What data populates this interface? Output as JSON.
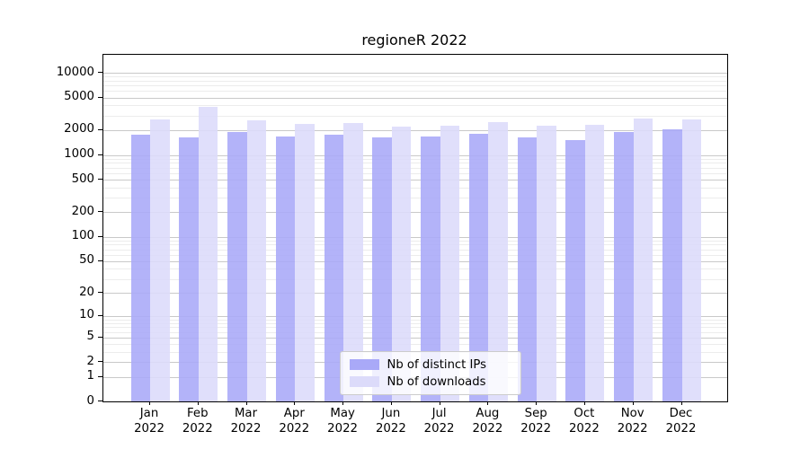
{
  "title": "regioneR 2022",
  "y_axis": {
    "ticks": [
      {
        "label": "10000",
        "value": 10000
      },
      {
        "label": "5000",
        "value": 5000
      },
      {
        "label": "2000",
        "value": 2000
      },
      {
        "label": "1000",
        "value": 1000
      },
      {
        "label": "500",
        "value": 500
      },
      {
        "label": "200",
        "value": 200
      },
      {
        "label": "100",
        "value": 100
      },
      {
        "label": "50",
        "value": 50
      },
      {
        "label": "20",
        "value": 20
      },
      {
        "label": "10",
        "value": 10
      },
      {
        "label": "5",
        "value": 5
      },
      {
        "label": "2",
        "value": 2
      },
      {
        "label": "1",
        "value": 1
      },
      {
        "label": "0",
        "value": 0
      }
    ]
  },
  "chart_data": {
    "type": "bar",
    "title": "regioneR 2022",
    "categories": [
      "Jan 2022",
      "Feb 2022",
      "Mar 2022",
      "Apr 2022",
      "May 2022",
      "Jun 2022",
      "Jul 2022",
      "Aug 2022",
      "Sep 2022",
      "Oct 2022",
      "Nov 2022",
      "Dec 2022"
    ],
    "series": [
      {
        "name": "Nb of distinct IPs",
        "color": "#a9a9f8",
        "values": [
          1750,
          1620,
          1880,
          1680,
          1780,
          1650,
          1680,
          1830,
          1620,
          1520,
          1920,
          2070
        ]
      },
      {
        "name": "Nb of downloads",
        "color": "#dcdbfa",
        "values": [
          2720,
          3870,
          2650,
          2400,
          2440,
          2210,
          2280,
          2520,
          2270,
          2300,
          2780,
          2720
        ]
      }
    ],
    "xlabel": "",
    "ylabel": "",
    "yscale": "log1p",
    "ylim": [
      0,
      16000
    ],
    "grid": "on",
    "legend_position": "lower center"
  }
}
